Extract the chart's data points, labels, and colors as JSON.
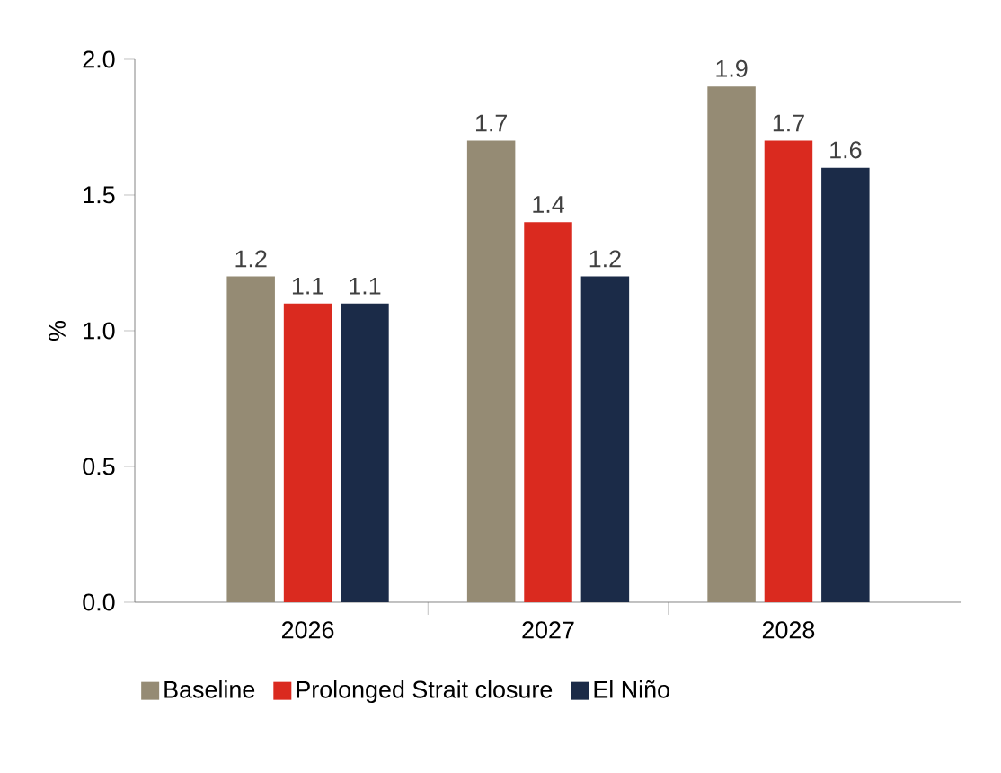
{
  "chart_data": {
    "type": "bar",
    "ylabel": "%",
    "categories": [
      "2026",
      "2027",
      "2028"
    ],
    "series": [
      {
        "name": "Baseline",
        "color": "#958b74",
        "values": [
          1.2,
          1.7,
          1.9
        ]
      },
      {
        "name": "Prolonged Strait closure",
        "color": "#da2a1f",
        "values": [
          1.1,
          1.4,
          1.7
        ]
      },
      {
        "name": "El Niño",
        "color": "#1b2b48",
        "values": [
          1.1,
          1.2,
          1.6
        ]
      }
    ],
    "ylim": [
      0,
      2.0
    ],
    "yticks": [
      {
        "value": 0,
        "label": "0.0"
      },
      {
        "value": 0.5,
        "label": "0.5"
      },
      {
        "value": 1.0,
        "label": "1.0"
      },
      {
        "value": 1.5,
        "label": "1.5"
      },
      {
        "value": 2.0,
        "label": "2.0"
      }
    ],
    "data_labels": true,
    "legend": "bottom",
    "grid": false
  }
}
